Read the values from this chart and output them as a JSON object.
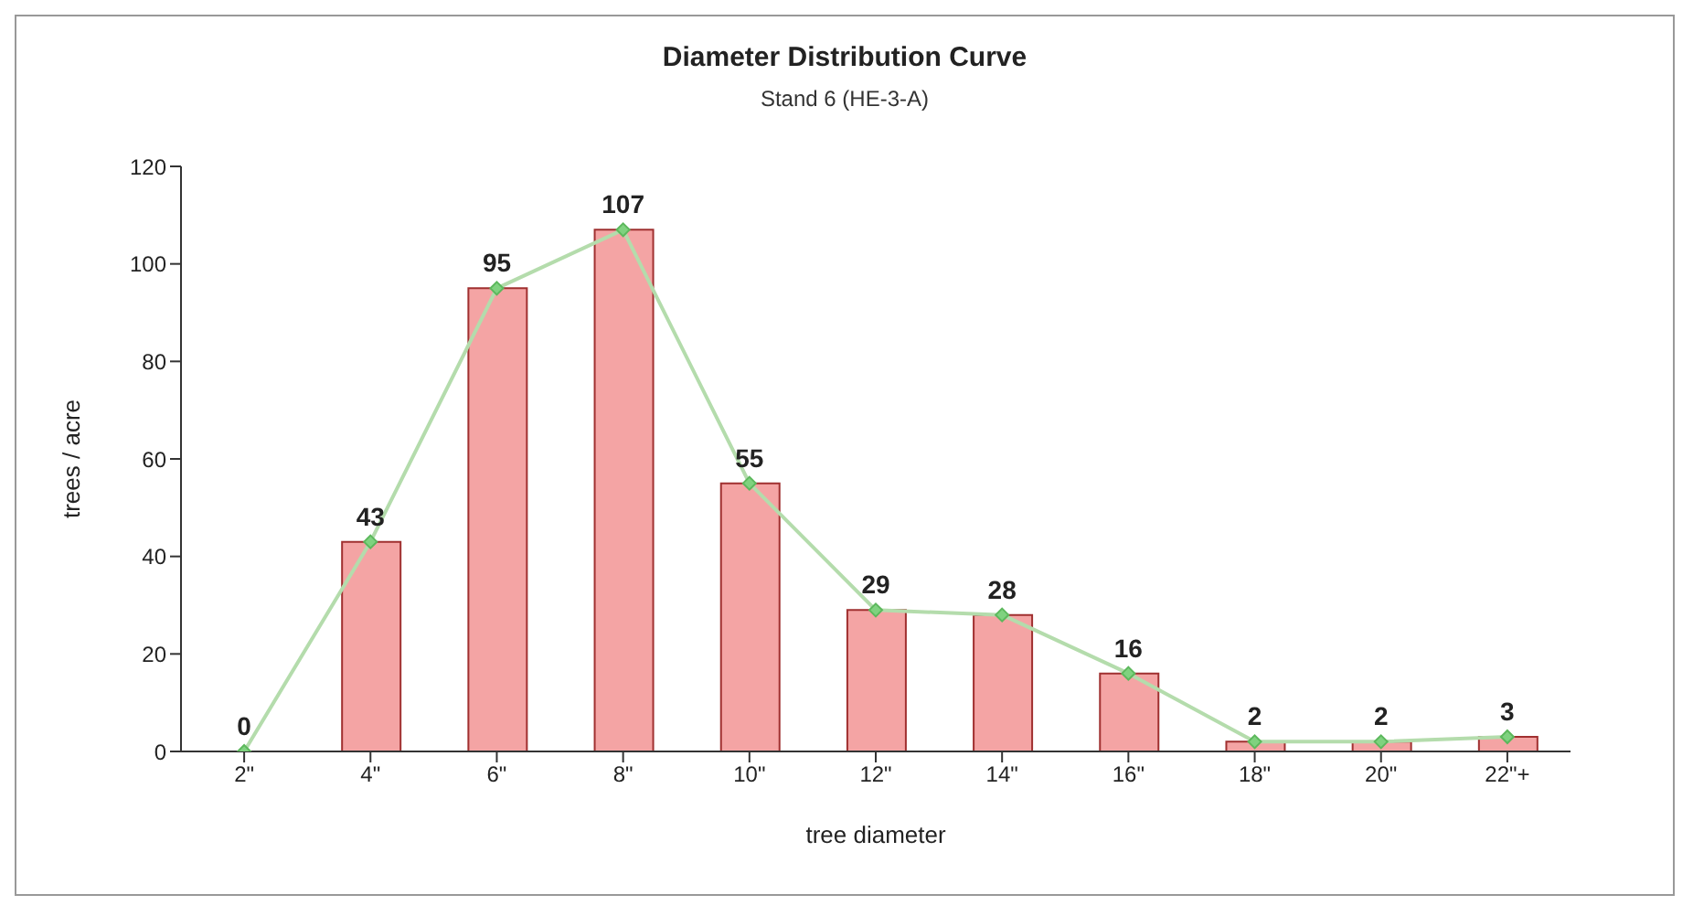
{
  "chart_data": {
    "type": "bar",
    "title": "Diameter Distribution Curve",
    "subtitle": "Stand 6  (HE-3-A)",
    "xlabel": "tree diameter",
    "ylabel": "trees / acre",
    "categories": [
      "2\"",
      "4\"",
      "6\"",
      "8\"",
      "10\"",
      "12\"",
      "14\"",
      "16\"",
      "18\"",
      "20\"",
      "22\"+"
    ],
    "series": [
      {
        "color": "#f4a4a4",
        "values": [
          0,
          43,
          95,
          107,
          55,
          29,
          28,
          16,
          2,
          2,
          3
        ]
      },
      {
        "type": "line",
        "color": "#b4dcac",
        "marker": "diamond",
        "values": [
          0,
          43,
          95,
          107,
          55,
          29,
          28,
          16,
          2,
          2,
          3
        ],
        "value_labels": [
          "0",
          "43",
          "95",
          "107",
          "55",
          "29",
          "28",
          "16",
          "2",
          "2",
          "3"
        ]
      }
    ],
    "ylim": [
      0,
      120
    ],
    "yticks": [
      0,
      20,
      40,
      60,
      80,
      100,
      120
    ]
  }
}
